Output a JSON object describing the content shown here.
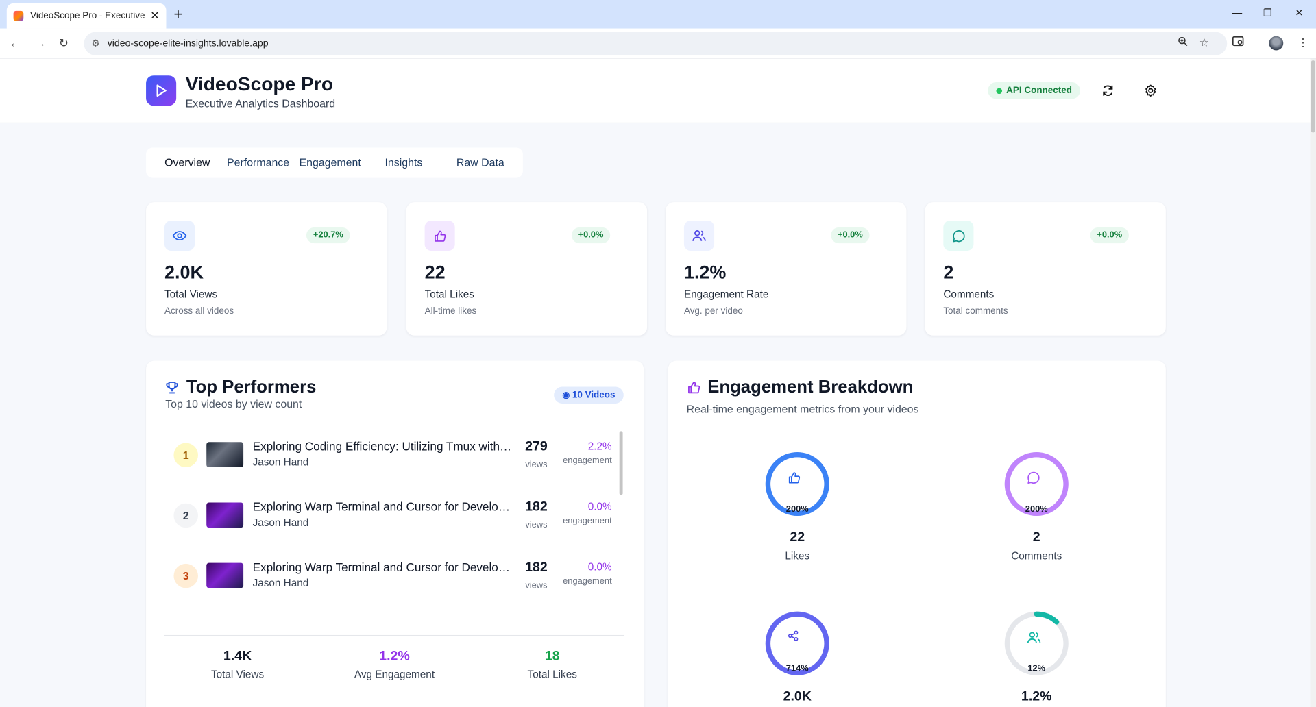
{
  "browser": {
    "tab_title": "VideoScope Pro - Executive YouTube Analytics",
    "url": "video-scope-elite-insights.lovable.app"
  },
  "header": {
    "title": "VideoScope Pro",
    "subtitle": "Executive Analytics Dashboard",
    "api_status": "API Connected"
  },
  "tabs": [
    "Overview",
    "Performance",
    "Engagement",
    "Insights",
    "Raw Data"
  ],
  "stats": [
    {
      "icon": "eye-icon",
      "change": "+20.7%",
      "value": "2.0K",
      "label": "Total Views",
      "sub": "Across all videos",
      "color": "#2563eb",
      "bg": "#eaf1fe"
    },
    {
      "icon": "thumbs-up-icon",
      "change": "+0.0%",
      "value": "22",
      "label": "Total Likes",
      "sub": "All-time likes",
      "color": "#9333ea",
      "bg": "#f3e8ff"
    },
    {
      "icon": "users-icon",
      "change": "+0.0%",
      "value": "1.2%",
      "label": "Engagement Rate",
      "sub": "Avg. per video",
      "color": "#4f46e5",
      "bg": "#eef2ff"
    },
    {
      "icon": "message-icon",
      "change": "+0.0%",
      "value": "2",
      "label": "Comments",
      "sub": "Total comments",
      "color": "#0d9488",
      "bg": "#e6faf6"
    }
  ],
  "top": {
    "title": "Top Performers",
    "subtitle": "Top 10 videos by view count",
    "badge": "10 Videos",
    "videos": [
      {
        "rank": "1",
        "title": "Exploring Coding Efficiency: Utilizing Tmux with Jason Hand",
        "author": "Jason Hand",
        "views": "279",
        "views_label": "views",
        "eng": "2.2%",
        "eng_label": "engagement"
      },
      {
        "rank": "2",
        "title": "Exploring Warp Terminal and Cursor for Development",
        "author": "Jason Hand",
        "views": "182",
        "views_label": "views",
        "eng": "0.0%",
        "eng_label": "engagement"
      },
      {
        "rank": "3",
        "title": "Exploring Warp Terminal and Cursor for Development",
        "author": "Jason Hand",
        "views": "182",
        "views_label": "views",
        "eng": "0.0%",
        "eng_label": "engagement"
      }
    ],
    "summary": [
      {
        "value": "1.4K",
        "label": "Total Views",
        "color": "#111827"
      },
      {
        "value": "1.2%",
        "label": "Avg Engagement",
        "color": "#9333ea"
      },
      {
        "value": "18",
        "label": "Total Likes",
        "color": "#16a34a"
      }
    ]
  },
  "engagement": {
    "title": "Engagement Breakdown",
    "subtitle": "Real-time engagement metrics from your videos",
    "metrics": [
      {
        "icon": "thumbs-up-icon",
        "pct": "200%",
        "fill": 1.0,
        "value": "22",
        "label": "Likes",
        "color": "#2563eb",
        "color2": "#3b82f6"
      },
      {
        "icon": "message-icon",
        "pct": "200%",
        "fill": 1.0,
        "value": "2",
        "label": "Comments",
        "color": "#a855f7",
        "color2": "#c084fc"
      },
      {
        "icon": "share-icon",
        "pct": "714%",
        "fill": 1.0,
        "value": "2.0K",
        "label": "",
        "color": "#4f46e5",
        "color2": "#6366f1"
      },
      {
        "icon": "users-icon",
        "pct": "12%",
        "fill": 0.12,
        "value": "1.2%",
        "label": "",
        "color": "#14b8a6",
        "color2": "#14b8a6"
      }
    ]
  }
}
